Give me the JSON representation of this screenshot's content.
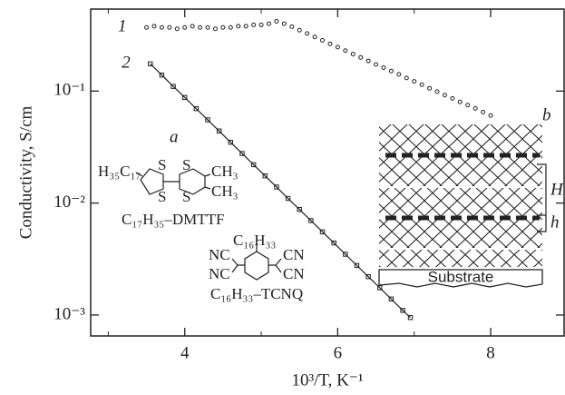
{
  "chart_data": {
    "type": "scatter",
    "ylog": true,
    "x_label": "10³/T, K⁻¹",
    "y_label": "Conductivity, S/cm",
    "xlim": [
      2.77,
      8.96
    ],
    "ylim": [
      0.00065,
      0.54
    ],
    "xticks": [
      4,
      6,
      8
    ],
    "xminorticks": [
      3,
      5,
      7
    ],
    "yticks": [
      {
        "value": 0.1,
        "label": "10⁻¹"
      },
      {
        "value": 0.01,
        "label": "10⁻²"
      },
      {
        "value": 0.001,
        "label": "10⁻³"
      }
    ],
    "series": [
      {
        "name": "1",
        "color": "#222222",
        "marker": "circle",
        "line": false,
        "x": [
          3.5,
          3.6,
          3.7,
          3.8,
          3.9,
          4.0,
          4.1,
          4.2,
          4.3,
          4.4,
          4.5,
          4.6,
          4.7,
          4.8,
          4.9,
          5.0,
          5.1,
          5.2,
          5.3,
          5.4,
          5.5,
          5.6,
          5.7,
          5.8,
          5.9,
          6.0,
          6.1,
          6.2,
          6.3,
          6.4,
          6.5,
          6.6,
          6.7,
          6.8,
          6.9,
          7.0,
          7.1,
          7.2,
          7.3,
          7.4,
          7.5,
          7.6,
          7.7,
          7.8,
          7.9,
          8.0
        ],
        "values": [
          0.37,
          0.38,
          0.37,
          0.37,
          0.36,
          0.37,
          0.38,
          0.37,
          0.37,
          0.36,
          0.37,
          0.37,
          0.38,
          0.38,
          0.39,
          0.39,
          0.4,
          0.42,
          0.4,
          0.376,
          0.35,
          0.327,
          0.304,
          0.284,
          0.264,
          0.247,
          0.23,
          0.214,
          0.2,
          0.186,
          0.173,
          0.162,
          0.151,
          0.141,
          0.131,
          0.122,
          0.114,
          0.106,
          0.099,
          0.092,
          0.086,
          0.08,
          0.075,
          0.07,
          0.065,
          0.0605
        ]
      },
      {
        "name": "2",
        "color": "#222222",
        "marker": "square",
        "line": true,
        "x": [
          3.55,
          3.7,
          3.85,
          4.0,
          4.15,
          4.3,
          4.45,
          4.6,
          4.75,
          4.9,
          5.05,
          5.2,
          5.35,
          5.5,
          5.65,
          5.8,
          5.95,
          6.1,
          6.25,
          6.4,
          6.55,
          6.7,
          6.85,
          6.95
        ],
        "values": [
          0.175,
          0.139,
          0.11,
          0.0877,
          0.0697,
          0.0553,
          0.044,
          0.0349,
          0.0277,
          0.022,
          0.0175,
          0.0139,
          0.011,
          0.00877,
          0.00697,
          0.00553,
          0.0044,
          0.00349,
          0.00277,
          0.0022,
          0.00175,
          0.00139,
          0.0011,
          0.00095
        ]
      }
    ],
    "annotations": [
      "a",
      "b"
    ],
    "dmttf": {
      "tail": "H₃₅C₁₇",
      "s1": "S",
      "s2": "S",
      "s3": "S",
      "s4": "S",
      "me1": "CH₃",
      "me2": "CH₃",
      "name": "C₁₇H₃₅–DMTTF"
    },
    "tcnq": {
      "tail": "C₁₆H₃₃",
      "nc1": "NC",
      "nc2": "NC",
      "cn1": "CN",
      "cn2": "CN",
      "name": "C₁₆H₃₃–TCNQ"
    },
    "layers": {
      "substrate": "Substrate",
      "big": "H",
      "small": "h"
    }
  }
}
